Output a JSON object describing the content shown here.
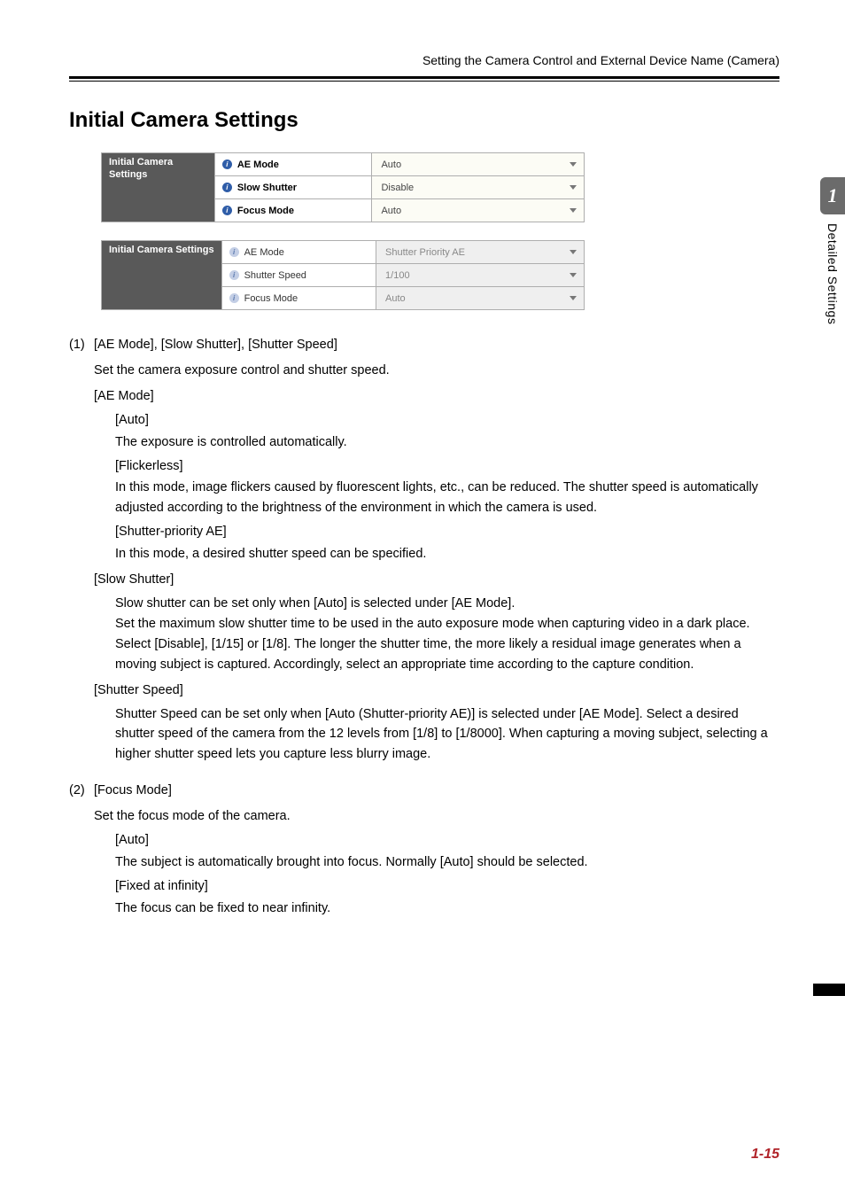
{
  "header_text": "Setting the Camera Control and External Device Name (Camera)",
  "section_title": "Initial Camera Settings",
  "side_chapter": "1",
  "side_label": "Detailed Settings",
  "page_number": "1-15",
  "table1": {
    "header": "Initial Camera Settings",
    "rows": [
      {
        "label": "AE Mode",
        "value": "Auto"
      },
      {
        "label": "Slow Shutter",
        "value": "Disable"
      },
      {
        "label": "Focus Mode",
        "value": "Auto"
      }
    ],
    "bold_labels": true,
    "header_multiline": true,
    "icon_style": "dark",
    "value_grey": false
  },
  "table2": {
    "header": "Initial Camera Settings",
    "rows": [
      {
        "label": "AE Mode",
        "value": "Shutter Priority AE"
      },
      {
        "label": "Shutter Speed",
        "value": "1/100"
      },
      {
        "label": "Focus Mode",
        "value": "Auto"
      }
    ],
    "bold_labels": false,
    "header_multiline": false,
    "icon_style": "light",
    "value_grey": true
  },
  "items": [
    {
      "num": "(1)",
      "title": "[AE Mode], [Slow Shutter], [Shutter Speed]",
      "intro": "Set the camera exposure control and shutter speed.",
      "subs": [
        {
          "heading": "[AE Mode]",
          "children": [
            {
              "label": "[Auto]",
              "text": "The exposure is controlled automatically."
            },
            {
              "label": "[Flickerless]",
              "text": "In this mode, image flickers caused by fluorescent lights, etc., can be reduced. The shutter speed is automatically adjusted according to the brightness of the environment in which the camera is used."
            },
            {
              "label": "[Shutter-priority AE]",
              "text": "In this mode, a desired shutter speed can be specified."
            }
          ]
        },
        {
          "heading": "[Slow Shutter]",
          "children": [
            {
              "label": "",
              "text": "Slow shutter can be set only when [Auto] is selected under [AE Mode].\nSet the maximum slow shutter time to be used in the auto exposure mode when capturing video in a dark place. Select [Disable], [1/15] or [1/8]. The longer the shutter time, the more likely a residual image generates when a moving subject is captured. Accordingly, select an appropriate time according to the capture condition."
            }
          ]
        },
        {
          "heading": "[Shutter Speed]",
          "children": [
            {
              "label": "",
              "text": "Shutter Speed can be set only when [Auto (Shutter-priority AE)] is selected under [AE Mode]. Select a desired shutter speed of the camera from the 12 levels from [1/8] to [1/8000]. When capturing a moving subject, selecting a higher shutter speed lets you capture less blurry image."
            }
          ]
        }
      ]
    },
    {
      "num": "(2)",
      "title": "[Focus Mode]",
      "intro": "Set the focus mode of the camera.",
      "subs": [
        {
          "heading": "",
          "children": [
            {
              "label": "[Auto]",
              "text": "The subject is automatically brought into focus. Normally [Auto] should be selected."
            },
            {
              "label": "[Fixed at infinity]",
              "text": "The focus can be fixed to near infinity."
            }
          ]
        }
      ]
    }
  ]
}
